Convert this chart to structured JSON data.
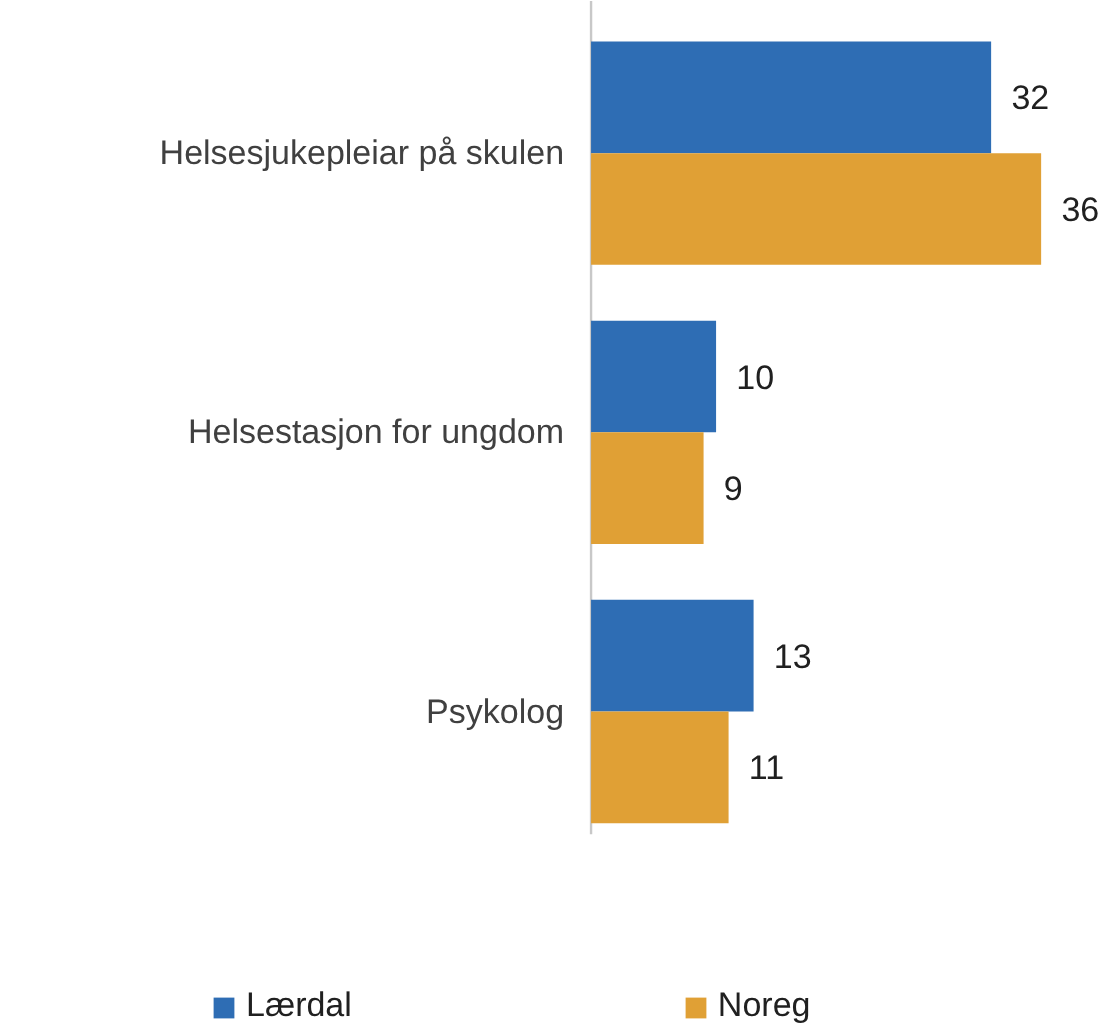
{
  "chart_data": {
    "type": "bar",
    "orientation": "horizontal",
    "categories": [
      "Helsesjukepleiar på skulen",
      "Helsestasjon for ungdom",
      "Psykolog"
    ],
    "series": [
      {
        "name": "Lærdal",
        "color": "#2e6db4",
        "values": [
          32,
          10,
          13
        ]
      },
      {
        "name": "Noreg",
        "color": "#e0a035",
        "values": [
          36,
          9,
          11
        ]
      }
    ],
    "data_labels": true,
    "legend": "bottom"
  }
}
